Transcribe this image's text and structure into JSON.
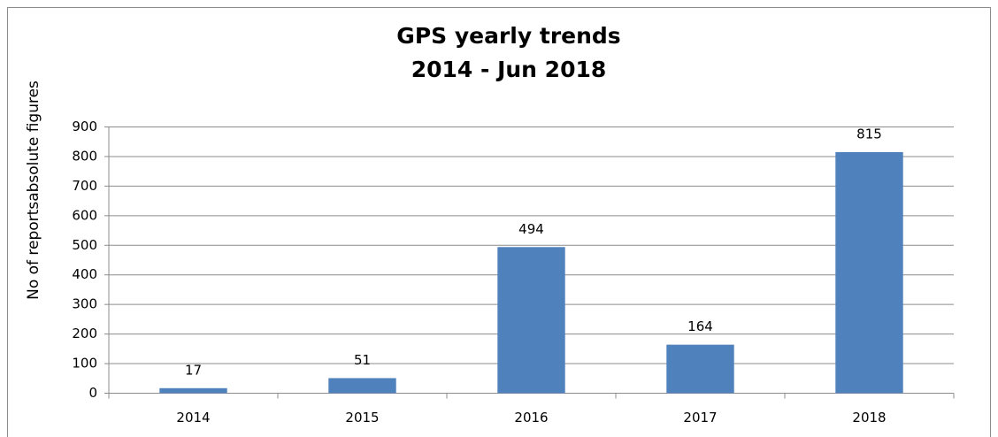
{
  "chart_data": {
    "type": "bar",
    "title": "GPS yearly trends",
    "subtitle": "2014 - Jun 2018",
    "y_label": "No of reportsabsolute figures",
    "categories": [
      "2014",
      "2015",
      "2016",
      "2017",
      "2018"
    ],
    "values": [
      17,
      51,
      494,
      164,
      815
    ],
    "color": "#4f81bd",
    "ylim": [
      0,
      900
    ],
    "yticks": [
      0,
      100,
      200,
      300,
      400,
      500,
      600,
      700,
      800,
      900
    ],
    "grid": true
  }
}
